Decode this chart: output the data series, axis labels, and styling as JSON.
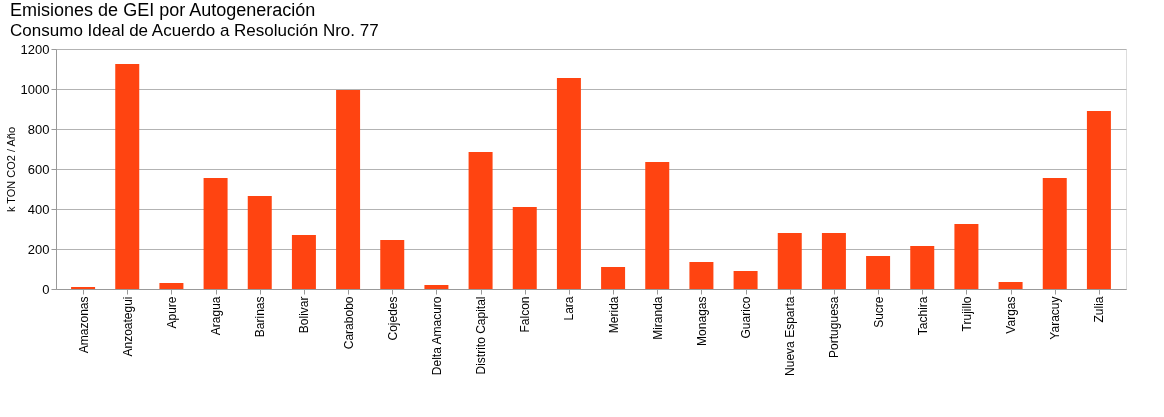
{
  "chart_data": {
    "type": "bar",
    "title": "Emisiones de GEI por Autogeneración",
    "subtitle": "Consumo Ideal de Acuerdo a Resolución Nro. 77",
    "ylabel": "k TON CO2 / Año",
    "categories": [
      "Amazonas",
      "Anzoategui",
      "Apure",
      "Aragua",
      "Barinas",
      "Bolivar",
      "Carabobo",
      "Cojedes",
      "Delta Amacuro",
      "Distrito Capital",
      "Falcon",
      "Lara",
      "Merida",
      "Miranda",
      "Monagas",
      "Guarico",
      "Nueva Esparta",
      "Portuguesa",
      "Sucre",
      "Tachira",
      "Trujillo",
      "Vargas",
      "Yaracuy",
      "Zulia"
    ],
    "values": [
      10,
      1125,
      30,
      555,
      465,
      270,
      995,
      245,
      20,
      685,
      410,
      1055,
      110,
      635,
      135,
      90,
      280,
      280,
      165,
      215,
      325,
      35,
      555,
      890
    ],
    "color": "#ff4411",
    "ylim": [
      0,
      1200
    ],
    "yticks": [
      0,
      200,
      400,
      600,
      800,
      1000,
      1200
    ],
    "grid": "y"
  }
}
